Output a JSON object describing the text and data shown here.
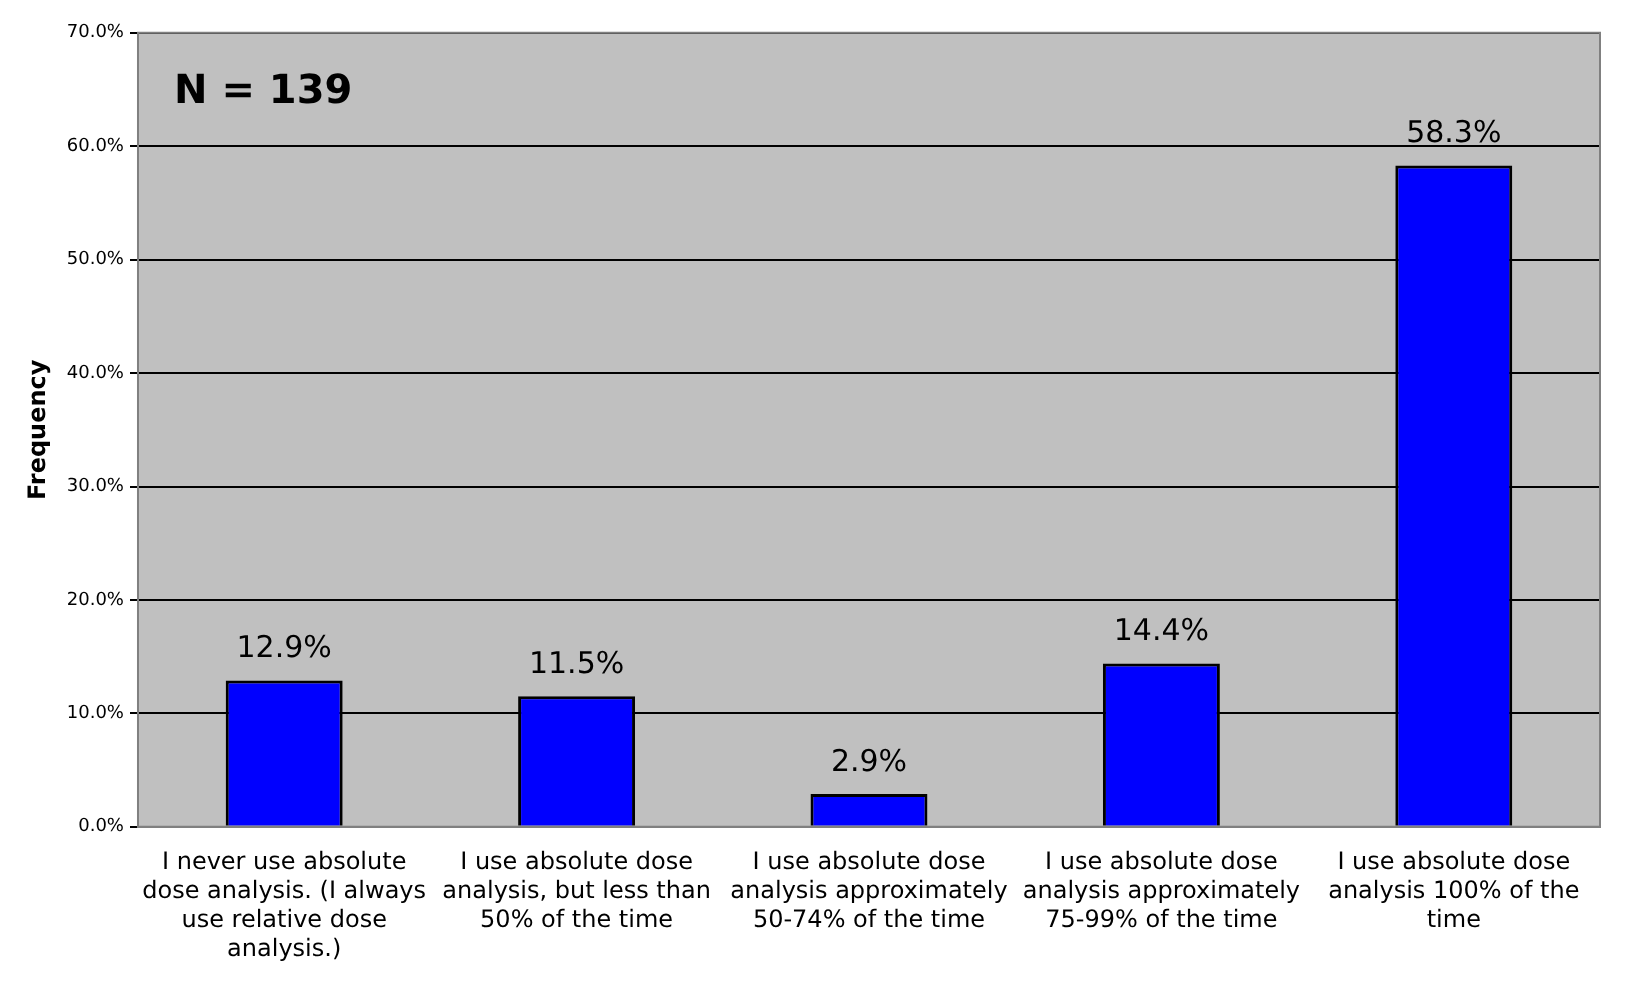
{
  "chart_data": {
    "type": "bar",
    "ylabel": "Frequency",
    "annotations": [
      "N = 139"
    ],
    "categories": [
      "I never use absolute dose analysis. (I always use relative dose analysis.)",
      "I use absolute dose analysis, but less than 50% of the time",
      "I use absolute dose analysis approximately 50-74% of the time",
      "I use absolute dose analysis approximately 75-99% of the time",
      "I use absolute dose analysis 100% of the time"
    ],
    "values": [
      12.9,
      11.5,
      2.9,
      14.4,
      58.3
    ],
    "value_labels": [
      "12.9%",
      "11.5%",
      "2.9%",
      "14.4%",
      "58.3%"
    ],
    "color": "#0000ff",
    "ylim": [
      0,
      70
    ],
    "yticks": [
      {
        "value": 0,
        "label": "0.0%"
      },
      {
        "value": 10,
        "label": "10.0%"
      },
      {
        "value": 20,
        "label": "20.0%"
      },
      {
        "value": 30,
        "label": "30.0%"
      },
      {
        "value": 40,
        "label": "40.0%"
      },
      {
        "value": 50,
        "label": "50.0%"
      },
      {
        "value": 60,
        "label": "60.0%"
      },
      {
        "value": 70,
        "label": "70.0%"
      }
    ],
    "grid": "y"
  }
}
